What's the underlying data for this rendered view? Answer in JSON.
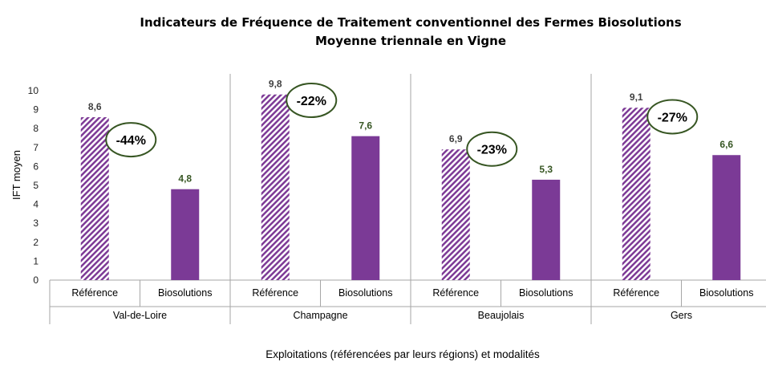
{
  "chart_data": {
    "type": "bar",
    "title": "Indicateurs de Fréquence de Traitement conventionnel des Fermes Biosolutions",
    "subtitle": "Moyenne triennale en Vigne",
    "xlabel": "Exploitations (référencées par leurs régions) et modalités",
    "ylabel": "IFT moyen",
    "ylim": [
      0,
      10
    ],
    "yticks": [
      0,
      1,
      2,
      3,
      4,
      5,
      6,
      7,
      8,
      9,
      10
    ],
    "grid": false,
    "legend": "none",
    "groups": [
      {
        "name": "Val-de-Loire",
        "categories": [
          "Référence",
          "Biosolutions"
        ],
        "values": [
          8.6,
          4.8
        ],
        "labels": [
          "8,6",
          "4,8"
        ],
        "reduction": "-44%"
      },
      {
        "name": "Champagne",
        "categories": [
          "Référence",
          "Biosolutions"
        ],
        "values": [
          9.8,
          7.6
        ],
        "labels": [
          "9,8",
          "7,6"
        ],
        "reduction": "-22%"
      },
      {
        "name": "Beaujolais",
        "categories": [
          "Référence",
          "Biosolutions"
        ],
        "values": [
          6.9,
          5.3
        ],
        "labels": [
          "6,9",
          "5,3"
        ],
        "reduction": "-23%"
      },
      {
        "name": "Gers",
        "categories": [
          "Référence",
          "Biosolutions"
        ],
        "values": [
          9.1,
          6.6
        ],
        "labels": [
          "9,1",
          "6,6"
        ],
        "reduction": "-27%"
      }
    ],
    "colors": {
      "reference": "#7d3a96",
      "biosolutions": "#7b3a96",
      "reference_label": "#404040",
      "biosolutions_label": "#375623",
      "annotation_ring": "#375623",
      "separator": "#a6a6a6"
    }
  }
}
